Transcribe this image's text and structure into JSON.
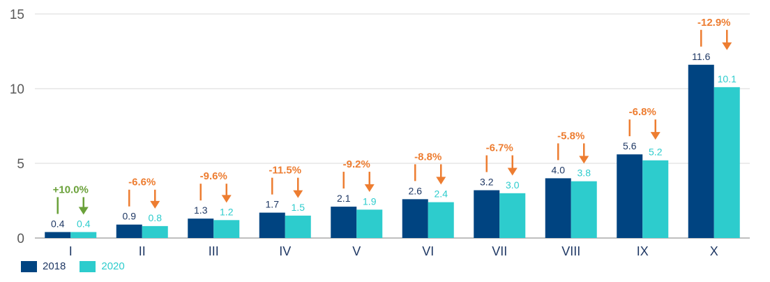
{
  "chart_data": {
    "type": "bar",
    "title": "",
    "xlabel": "",
    "ylabel": "",
    "ylim": [
      0,
      15
    ],
    "yticks": [
      0,
      5,
      10,
      15
    ],
    "grid": true,
    "categories": [
      "I",
      "II",
      "III",
      "IV",
      "V",
      "VI",
      "VII",
      "VIII",
      "IX",
      "X"
    ],
    "series": [
      {
        "name": "2018",
        "color": "#004481",
        "values": [
          0.4,
          0.9,
          1.3,
          1.7,
          2.1,
          2.6,
          3.2,
          4.0,
          5.6,
          11.6
        ]
      },
      {
        "name": "2020",
        "color": "#2dcccd",
        "values": [
          0.4,
          0.8,
          1.2,
          1.5,
          1.9,
          2.4,
          3.0,
          3.8,
          5.2,
          10.1
        ]
      }
    ],
    "value_labels": {
      "2018": [
        "0.4",
        "0.9",
        "1.3",
        "1.7",
        "2.1",
        "2.6",
        "3.2",
        "4.0",
        "5.6",
        "11.6"
      ],
      "2020": [
        "0.4",
        "0.8",
        "1.2",
        "1.5",
        "1.9",
        "2.4",
        "3.0",
        "3.8",
        "5.2",
        "10.1"
      ]
    },
    "annotations": [
      {
        "category": "I",
        "text": "+10.0%",
        "color": "#6aa13a"
      },
      {
        "category": "II",
        "text": "-6.6%",
        "color": "#ed7d31"
      },
      {
        "category": "III",
        "text": "-9.6%",
        "color": "#ed7d31"
      },
      {
        "category": "IV",
        "text": "-11.5%",
        "color": "#ed7d31"
      },
      {
        "category": "V",
        "text": "-9.2%",
        "color": "#ed7d31"
      },
      {
        "category": "VI",
        "text": "-8.8%",
        "color": "#ed7d31"
      },
      {
        "category": "VII",
        "text": "-6.7%",
        "color": "#ed7d31"
      },
      {
        "category": "VIII",
        "text": "-5.8%",
        "color": "#ed7d31"
      },
      {
        "category": "IX",
        "text": "-6.8%",
        "color": "#ed7d31"
      },
      {
        "category": "X",
        "text": "-12.9%",
        "color": "#ed7d31"
      }
    ],
    "legend": {
      "position": "bottom-left",
      "entries": [
        "2018",
        "2020"
      ]
    }
  }
}
